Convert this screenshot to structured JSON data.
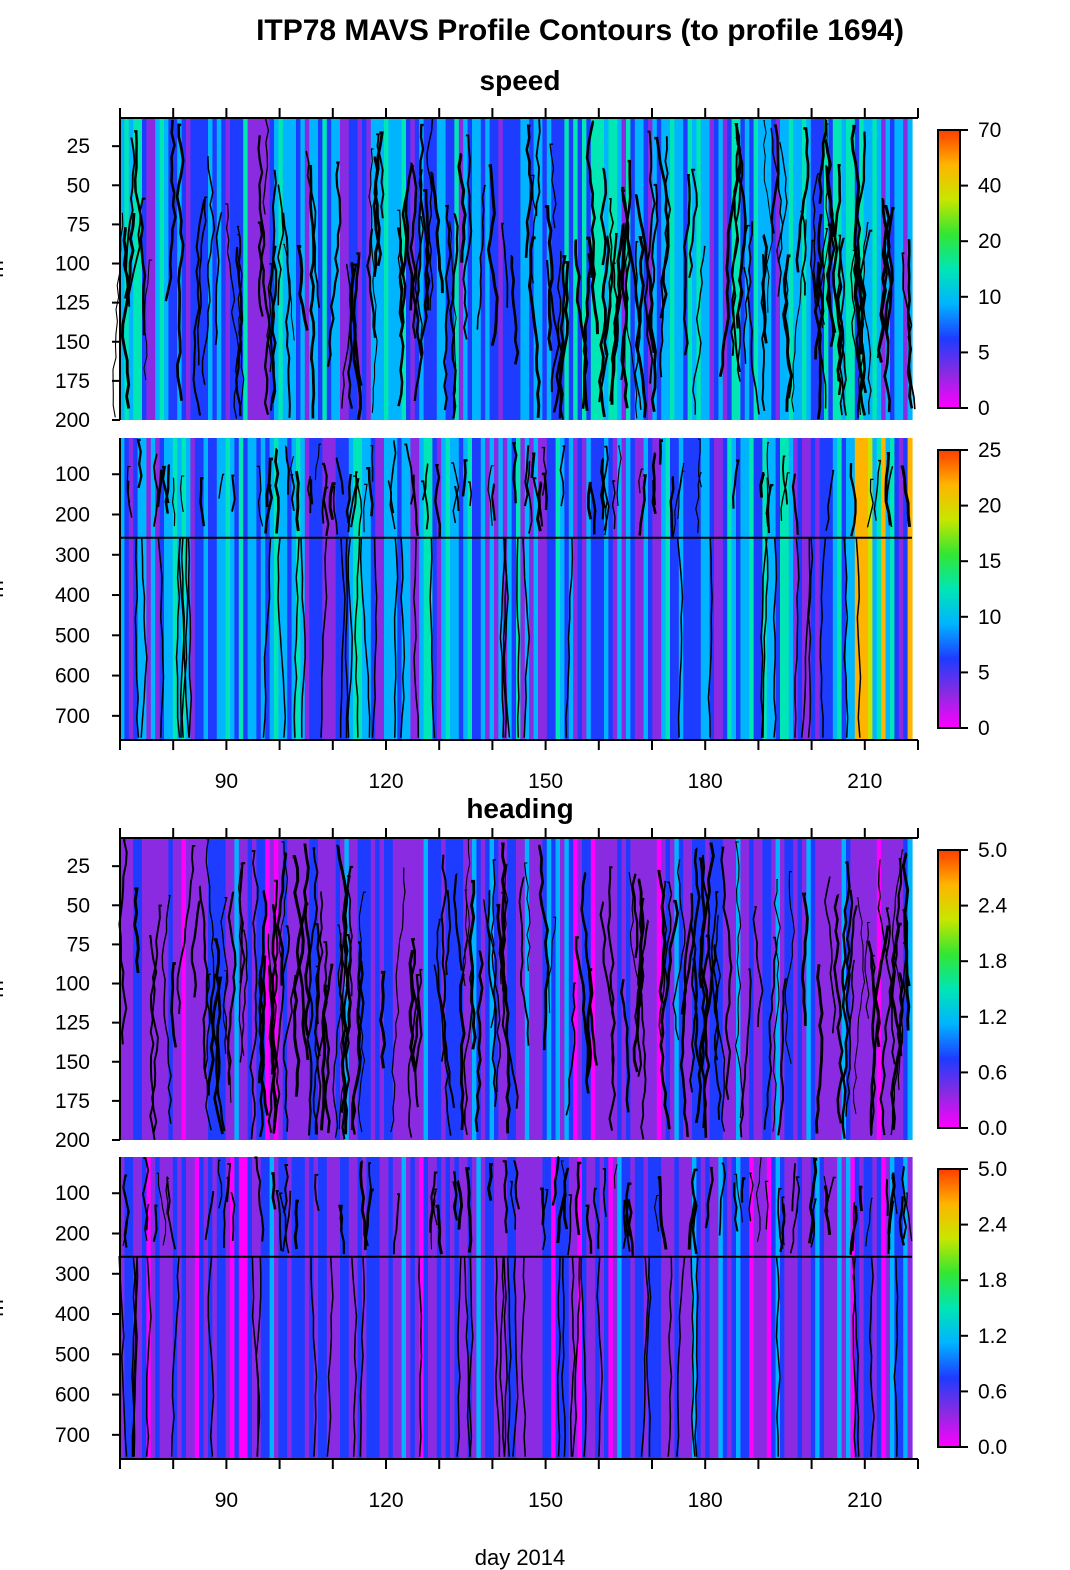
{
  "title": "ITP78 MAVS Profile Contours (to profile 1694)",
  "chart_data": {
    "type": "heatmap",
    "title": "ITP78 MAVS Profile Contours (to profile 1694)",
    "xlabel": "day 2014",
    "xlim": [
      70,
      220
    ],
    "x_ticks": [
      "90",
      "120",
      "150",
      "180",
      "210"
    ],
    "ylabel_fragment": "m",
    "panels": [
      {
        "group": "speed",
        "y_range": [
          7,
          200
        ],
        "y_ticks": [
          "25",
          "50",
          "75",
          "100",
          "125",
          "150",
          "175",
          "200"
        ],
        "colorbar": {
          "ticks": [
            "70",
            "40",
            "20",
            "10",
            "5",
            "0"
          ],
          "range": [
            0,
            70
          ]
        }
      },
      {
        "group": "speed",
        "y_range": [
          10,
          760
        ],
        "y_ticks": [
          "100",
          "200",
          "300",
          "400",
          "500",
          "600",
          "700"
        ],
        "colorbar": {
          "ticks": [
            "25",
            "20",
            "15",
            "10",
            "5",
            "0"
          ],
          "range": [
            0,
            25
          ]
        }
      },
      {
        "group": "heading",
        "y_range": [
          7,
          200
        ],
        "y_ticks": [
          "25",
          "50",
          "75",
          "100",
          "125",
          "150",
          "175",
          "200"
        ],
        "colorbar": {
          "ticks": [
            "5.0",
            "2.4",
            "1.8",
            "1.2",
            "0.6",
            "0.0"
          ],
          "range": [
            0,
            5
          ]
        }
      },
      {
        "group": "heading",
        "y_range": [
          10,
          760
        ],
        "y_ticks": [
          "100",
          "200",
          "300",
          "400",
          "500",
          "600",
          "700"
        ],
        "colorbar": {
          "ticks": [
            "5.0",
            "2.4",
            "1.8",
            "1.2",
            "0.6",
            "0.0"
          ],
          "range": [
            0,
            5
          ]
        }
      }
    ],
    "group_titles": [
      "speed",
      "heading"
    ],
    "colormap": [
      "#ff00ff",
      "#8a2be2",
      "#1e3cff",
      "#00b4ff",
      "#00e6b4",
      "#32e632",
      "#c8e600",
      "#ffb400",
      "#ff3c00"
    ],
    "contour_line_color": "#000000"
  }
}
